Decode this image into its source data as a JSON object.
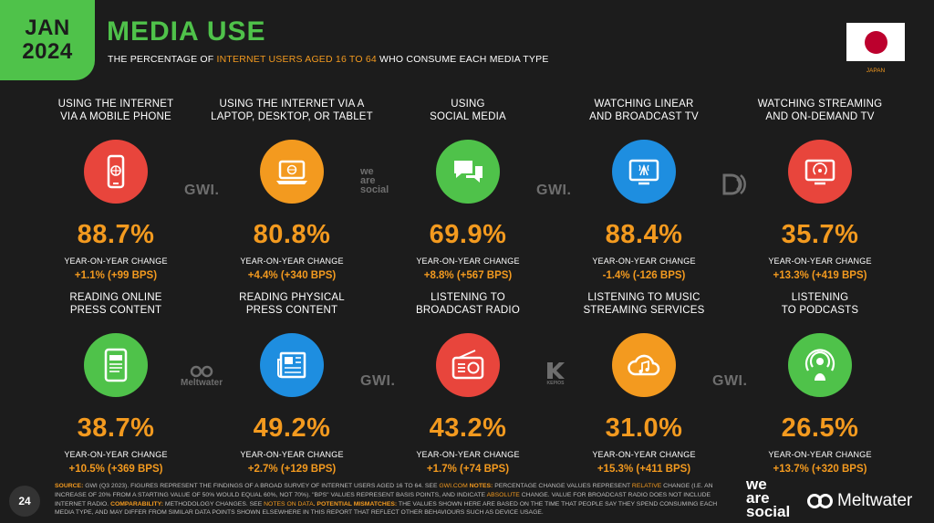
{
  "header": {
    "month": "JAN",
    "year": "2024",
    "title": "MEDIA USE",
    "subtitle_pre": "THE PERCENTAGE OF ",
    "subtitle_highlight": "INTERNET USERS AGED 16 TO 64",
    "subtitle_post": " WHO CONSUME EACH MEDIA TYPE",
    "country": "JAPAN"
  },
  "colors": {
    "green": "#4fc24a",
    "orange": "#f39a1f",
    "red": "#e8453c",
    "blue": "#1e8ee0"
  },
  "items": [
    {
      "label": "USING THE INTERNET\nVIA A MOBILE PHONE",
      "value": "88.7%",
      "yoy_label": "YEAR-ON-YEAR CHANGE",
      "yoy": "+1.1% (+99 BPS)",
      "icon": "mobile-phone-icon",
      "color": "#e8453c"
    },
    {
      "label": "USING THE INTERNET VIA A\nLAPTOP, DESKTOP, OR TABLET",
      "value": "80.8%",
      "yoy_label": "YEAR-ON-YEAR CHANGE",
      "yoy": "+4.4% (+340 BPS)",
      "icon": "laptop-icon",
      "color": "#f39a1f"
    },
    {
      "label": "USING\nSOCIAL MEDIA",
      "value": "69.9%",
      "yoy_label": "YEAR-ON-YEAR CHANGE",
      "yoy": "+8.8% (+567 BPS)",
      "icon": "chat-bubbles-icon",
      "color": "#4fc24a"
    },
    {
      "label": "WATCHING LINEAR\nAND BROADCAST TV",
      "value": "88.4%",
      "yoy_label": "YEAR-ON-YEAR CHANGE",
      "yoy": "-1.4% (-126 BPS)",
      "icon": "broadcast-tv-icon",
      "color": "#1e8ee0"
    },
    {
      "label": "WATCHING STREAMING\nAND ON-DEMAND TV",
      "value": "35.7%",
      "yoy_label": "YEAR-ON-YEAR CHANGE",
      "yoy": "+13.3% (+419 BPS)",
      "icon": "streaming-tv-icon",
      "color": "#e8453c"
    },
    {
      "label": "READING ONLINE\nPRESS CONTENT",
      "value": "38.7%",
      "yoy_label": "YEAR-ON-YEAR CHANGE",
      "yoy": "+10.5% (+369 BPS)",
      "icon": "tablet-news-icon",
      "color": "#4fc24a"
    },
    {
      "label": "READING PHYSICAL\nPRESS CONTENT",
      "value": "49.2%",
      "yoy_label": "YEAR-ON-YEAR CHANGE",
      "yoy": "+2.7% (+129 BPS)",
      "icon": "newspaper-icon",
      "color": "#1e8ee0"
    },
    {
      "label": "LISTENING TO\nBROADCAST RADIO",
      "value": "43.2%",
      "yoy_label": "YEAR-ON-YEAR CHANGE",
      "yoy": "+1.7% (+74 BPS)",
      "icon": "radio-icon",
      "color": "#e8453c"
    },
    {
      "label": "LISTENING TO MUSIC\nSTREAMING SERVICES",
      "value": "31.0%",
      "yoy_label": "YEAR-ON-YEAR CHANGE",
      "yoy": "+15.3% (+411 BPS)",
      "icon": "music-cloud-icon",
      "color": "#f39a1f"
    },
    {
      "label": "LISTENING\nTO PODCASTS",
      "value": "26.5%",
      "yoy_label": "YEAR-ON-YEAR CHANGE",
      "yoy": "+13.7% (+320 BPS)",
      "icon": "podcast-icon",
      "color": "#4fc24a"
    }
  ],
  "watermarks": {
    "gwi": "GWI.",
    "we_are_social": "we\nare\nsocial",
    "meltwater": "Meltwater",
    "kepios": "KEPIOS"
  },
  "footer": {
    "source_label": "SOURCE:",
    "source_text": " GWI (Q3 2023). FIGURES REPRESENT THE FINDINGS OF A BROAD SURVEY OF INTERNET USERS AGED 16 TO 64. SEE ",
    "source_link": "GWI.COM",
    "notes_label": " NOTES:",
    "notes_text_1": " PERCENTAGE CHANGE VALUES REPRESENT ",
    "notes_relative": "RELATIVE",
    "notes_text_2": " CHANGE (I.E. AN INCREASE OF 20% FROM A STARTING VALUE OF 50% WOULD EQUAL 60%, NOT 70%). \"BPS\" VALUES REPRESENT BASIS POINTS, AND INDICATE ",
    "notes_absolute": "ABSOLUTE",
    "notes_text_3": " CHANGE. VALUE FOR BROADCAST RADIO DOES NOT INCLUDE INTERNET RADIO. ",
    "comparability_label": "COMPARABILITY:",
    "comparability_text": " METHODOLOGY CHANGES. SEE ",
    "notes_on_data": "NOTES ON DATA",
    "mismatch_label": ". POTENTIAL MISMATCHES:",
    "mismatch_text": " THE VALUES SHOWN HERE ARE BASED ON THE TIME THAT PEOPLE SAY THEY SPEND CONSUMING EACH MEDIA TYPE, AND MAY DIFFER FROM SIMILAR DATA POINTS SHOWN ELSEWHERE IN THIS REPORT THAT REFLECT OTHER BEHAVIOURS SUCH AS DEVICE USAGE.",
    "page_number": "24",
    "brand_was": "we\nare\nsocial",
    "brand_meltwater": "Meltwater"
  }
}
